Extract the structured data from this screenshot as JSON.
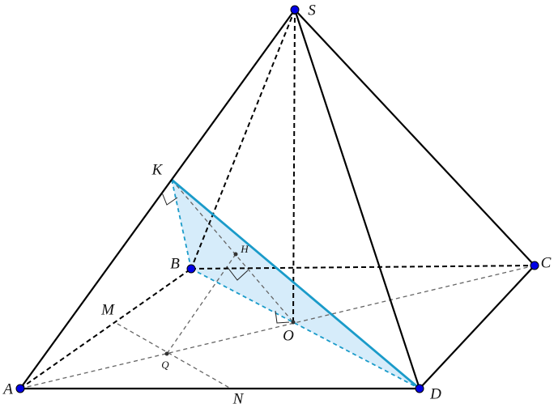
{
  "points": [
    {
      "label": "S"
    },
    {
      "label": "A"
    },
    {
      "label": "B"
    },
    {
      "label": "C"
    },
    {
      "label": "D"
    },
    {
      "label": "K"
    },
    {
      "label": "H"
    },
    {
      "label": "O"
    },
    {
      "label": "Q"
    },
    {
      "label": "M"
    },
    {
      "label": "N"
    }
  ]
}
